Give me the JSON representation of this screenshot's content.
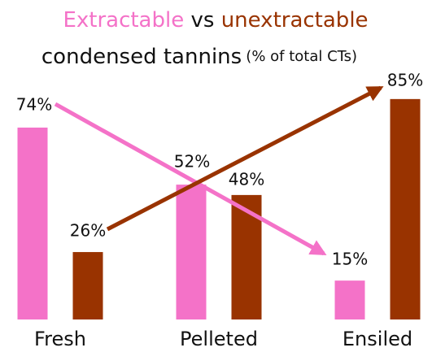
{
  "chart_data": {
    "type": "bar",
    "title_middle": "vs",
    "subtitle": "condensed tannins",
    "subtitle_note": "(% of total CTs)",
    "categories": [
      "Fresh",
      "Pelleted",
      "Ensiled"
    ],
    "series": [
      {
        "name": "Extractable",
        "color": "#f472c8",
        "values": [
          74,
          52,
          15
        ],
        "value_labels": [
          "74%",
          "52%",
          "15%"
        ]
      },
      {
        "name": "unextractable",
        "color": "#993300",
        "values": [
          26,
          48,
          85
        ],
        "value_labels": [
          "26%",
          "48%",
          "85%"
        ]
      }
    ]
  }
}
